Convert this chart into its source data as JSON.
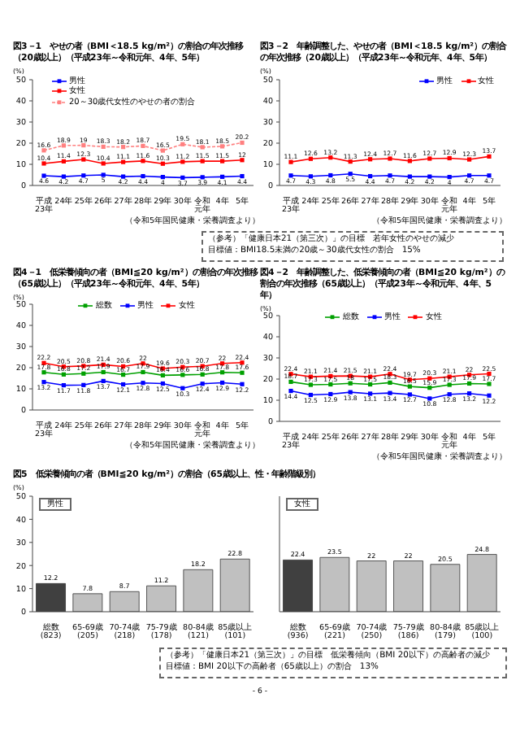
{
  "chart_data": [
    {
      "type": "line",
      "title": "図3－1　やせの者（BMI＜18.5 kg/m²）の割合の年次推移（20歳以上）（平成23年～令和元年、4年、5年）",
      "ylabel": "(%)",
      "categories": [
        "平成23年",
        "24年",
        "25年",
        "26年",
        "27年",
        "28年",
        "29年",
        "30年",
        "令和元年",
        "4年",
        "5年"
      ],
      "ylim": [
        0,
        50
      ],
      "yticks": [
        0,
        10,
        20,
        30,
        40,
        50
      ],
      "marker": "square",
      "data_labels": true,
      "legend": "top left",
      "series": [
        {
          "name": "男性",
          "color": "#0000ff",
          "values": [
            4.6,
            4.2,
            4.7,
            5.0,
            4.2,
            4.4,
            4.0,
            3.7,
            3.9,
            4.1,
            4.4
          ]
        },
        {
          "name": "女性",
          "color": "#ff0000",
          "values": [
            10.4,
            11.4,
            12.3,
            10.4,
            11.1,
            11.6,
            10.3,
            11.2,
            11.5,
            11.5,
            12.0
          ]
        },
        {
          "name": "20～30歳代女性のやせの者の割合",
          "color": "#ff8080",
          "line_style": "dashed",
          "values": [
            16.6,
            18.9,
            19.0,
            18.3,
            18.2,
            18.7,
            16.5,
            19.5,
            18.1,
            18.5,
            20.2
          ]
        }
      ],
      "annotations": [
        "（令和5年国民健康・栄養調査より）"
      ]
    },
    {
      "type": "line",
      "title": "図3－2　年齢調整した、やせの者（BMI＜18.5 kg/m²）の割合の年次推移（20歳以上）（平成23年～令和元年、4年、5年）",
      "ylabel": "(%)",
      "categories": [
        "平成23年",
        "24年",
        "25年",
        "26年",
        "27年",
        "28年",
        "29年",
        "30年",
        "令和元年",
        "4年",
        "5年"
      ],
      "ylim": [
        0,
        50
      ],
      "yticks": [
        0,
        10,
        20,
        30,
        40,
        50
      ],
      "marker": "square",
      "data_labels": true,
      "legend": "top right",
      "series": [
        {
          "name": "男性",
          "color": "#0000ff",
          "values": [
            4.7,
            4.3,
            4.8,
            5.5,
            4.4,
            4.7,
            4.2,
            4.2,
            4.0,
            4.7,
            4.7
          ]
        },
        {
          "name": "女性",
          "color": "#ff0000",
          "values": [
            11.1,
            12.6,
            13.2,
            11.3,
            12.4,
            12.7,
            11.6,
            12.7,
            12.9,
            12.3,
            13.7
          ]
        }
      ],
      "annotations": [
        "（令和5年国民健康・栄養調査より）",
        "（参考）「健康日本21（第三次）」の目標　若年女性のやせの減少",
        "目標値：BMI18.5未満の20歳～30歳代女性の割合　15%"
      ]
    },
    {
      "type": "line",
      "title": "図4－1　低栄養傾向の者（BMI≦20 kg/m²）の割合の年次推移（65歳以上）（平成23年～令和元年、4年、5年）",
      "ylabel": "(%)",
      "categories": [
        "平成23年",
        "24年",
        "25年",
        "26年",
        "27年",
        "28年",
        "29年",
        "30年",
        "令和元年",
        "4年",
        "5年"
      ],
      "ylim": [
        0,
        50
      ],
      "yticks": [
        0,
        10,
        20,
        30,
        40,
        50
      ],
      "marker": "square",
      "data_labels": true,
      "legend": "top",
      "series": [
        {
          "name": "総数",
          "color": "#00a000",
          "values": [
            17.8,
            16.8,
            17.2,
            17.9,
            16.7,
            17.9,
            16.4,
            16.6,
            16.8,
            17.8,
            17.6
          ]
        },
        {
          "name": "男性",
          "color": "#0000ff",
          "values": [
            13.2,
            11.7,
            11.8,
            13.7,
            12.1,
            12.8,
            12.5,
            10.3,
            12.4,
            12.9,
            12.2
          ]
        },
        {
          "name": "女性",
          "color": "#ff0000",
          "values": [
            22.2,
            20.5,
            20.8,
            21.4,
            20.6,
            22.0,
            19.6,
            20.3,
            20.7,
            22.0,
            22.4
          ]
        }
      ],
      "annotations": [
        "（令和5年国民健康・栄養調査より）"
      ]
    },
    {
      "type": "line",
      "title": "図4－2　年齢調整した、低栄養傾向の者（BMI≦20 kg/m²）の割合の年次推移（65歳以上）（平成23年～令和元年、4年、5年）",
      "ylabel": "(%)",
      "categories": [
        "平成23年",
        "24年",
        "25年",
        "26年",
        "27年",
        "28年",
        "29年",
        "30年",
        "令和元年",
        "4年",
        "5年"
      ],
      "ylim": [
        0,
        50
      ],
      "yticks": [
        0,
        10,
        20,
        30,
        40,
        50
      ],
      "marker": "square",
      "data_labels": true,
      "legend": "top",
      "series": [
        {
          "name": "総数",
          "color": "#00a000",
          "values": [
            18.7,
            17.3,
            17.5,
            18.0,
            17.5,
            18.3,
            16.5,
            15.9,
            17.3,
            17.9,
            17.7
          ]
        },
        {
          "name": "男性",
          "color": "#0000ff",
          "values": [
            14.4,
            12.5,
            12.9,
            13.8,
            13.1,
            13.4,
            12.7,
            10.8,
            12.8,
            13.2,
            12.2
          ]
        },
        {
          "name": "女性",
          "color": "#ff0000",
          "values": [
            22.4,
            21.1,
            21.4,
            21.5,
            21.1,
            22.4,
            19.7,
            20.3,
            21.1,
            22.0,
            22.5
          ]
        }
      ],
      "annotations": [
        "（令和5年国民健康・栄養調査より）"
      ]
    },
    {
      "type": "bar",
      "title": "図5　低栄養傾向の者（BMI≦20 kg/m²）の割合（65歳以上、性・年齢階級別）",
      "subtitle": "男性",
      "ylabel": "(%)",
      "categories": [
        "総数(823)",
        "65-69歳(205)",
        "70-74歳(218)",
        "75-79歳(178)",
        "80-84歳(121)",
        "85歳以上(101)"
      ],
      "ylim": [
        0,
        50
      ],
      "yticks": [
        0,
        10,
        20,
        30,
        40,
        50
      ],
      "data_labels": true,
      "values": [
        12.2,
        7.8,
        8.7,
        11.2,
        18.2,
        22.8
      ],
      "colors": [
        "#404040",
        "#c0c0c0",
        "#c0c0c0",
        "#c0c0c0",
        "#c0c0c0",
        "#c0c0c0"
      ]
    },
    {
      "type": "bar",
      "subtitle": "女性",
      "categories": [
        "総数(936)",
        "65-69歳(221)",
        "70-74歳(250)",
        "75-79歳(186)",
        "80-84歳(179)",
        "85歳以上(100)"
      ],
      "ylim": [
        0,
        50
      ],
      "yticks": [
        0,
        10,
        20,
        30,
        40,
        50
      ],
      "tick_labels": "x",
      "data_labels": true,
      "values": [
        22.4,
        23.5,
        22.0,
        22.0,
        20.5,
        24.8
      ],
      "colors": [
        "#404040",
        "#c0c0c0",
        "#c0c0c0",
        "#c0c0c0",
        "#c0c0c0",
        "#c0c0c0"
      ],
      "annotations": [
        "（参考）「健康日本21（第三次）」の目標　低栄養傾向（BMI 20以下）の高齢者の減少",
        "目標値：BMI 20以下の高齢者（65歳以上）の割合　13%",
        "- 6 -"
      ]
    }
  ]
}
